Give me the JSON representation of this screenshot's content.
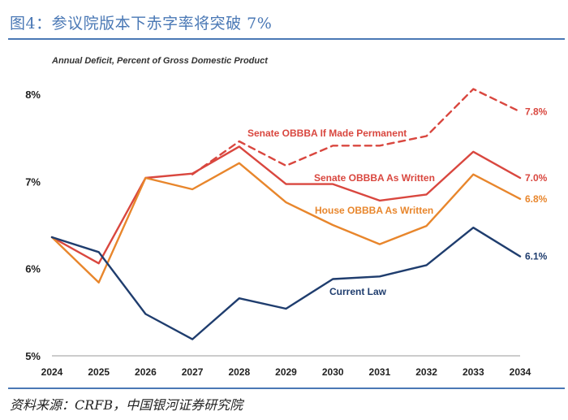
{
  "figure": {
    "title": "图4：参议院版本下赤字率将突破 7%",
    "source": "资料来源：CRFB，中国银河证券研究院"
  },
  "chart_data": {
    "type": "line",
    "title": "Annual Deficit, Percent of Gross Domestic Product",
    "xlabel": "",
    "ylabel": "",
    "x": [
      2024,
      2025,
      2026,
      2027,
      2028,
      2029,
      2030,
      2031,
      2032,
      2033,
      2034
    ],
    "x_tick_labels": [
      "2024",
      "2025",
      "2026",
      "2027",
      "2028",
      "2029",
      "2030",
      "2031",
      "2032",
      "2033",
      "2034"
    ],
    "ylim": [
      5,
      8
    ],
    "y_ticks": [
      5,
      6,
      7,
      8
    ],
    "y_tick_labels": [
      "5%",
      "6%",
      "7%",
      "8%"
    ],
    "grid": false,
    "series": [
      {
        "name": "Senate OBBBA If Made Permanent",
        "color": "#d9473f",
        "style": "dashed",
        "x": [
          2027,
          2028,
          2029,
          2030,
          2031,
          2032,
          2033,
          2034
        ],
        "values": [
          7.08,
          7.46,
          7.18,
          7.41,
          7.41,
          7.52,
          8.06,
          7.8
        ],
        "end_label": "7.8%"
      },
      {
        "name": "Senate OBBBA As Written",
        "color": "#d9473f",
        "style": "solid",
        "x": [
          2024,
          2025,
          2026,
          2027,
          2028,
          2029,
          2030,
          2031,
          2032,
          2033,
          2034
        ],
        "values": [
          6.36,
          6.06,
          7.04,
          7.09,
          7.4,
          6.97,
          6.97,
          6.78,
          6.85,
          7.34,
          7.04
        ],
        "end_label": "7.0%"
      },
      {
        "name": "House OBBBA As Written",
        "color": "#e8862c",
        "style": "solid",
        "x": [
          2024,
          2025,
          2026,
          2027,
          2028,
          2029,
          2030,
          2031,
          2032,
          2033,
          2034
        ],
        "values": [
          6.36,
          5.84,
          7.04,
          6.91,
          7.21,
          6.76,
          6.5,
          6.28,
          6.49,
          7.08,
          6.8
        ],
        "end_label": "6.8%"
      },
      {
        "name": "Current Law",
        "color": "#1f3d6e",
        "style": "solid",
        "x": [
          2024,
          2025,
          2026,
          2027,
          2028,
          2029,
          2030,
          2031,
          2032,
          2033,
          2034
        ],
        "values": [
          6.36,
          6.19,
          5.48,
          5.19,
          5.66,
          5.54,
          5.88,
          5.91,
          6.04,
          6.47,
          6.14
        ],
        "end_label": "6.1%"
      }
    ]
  }
}
